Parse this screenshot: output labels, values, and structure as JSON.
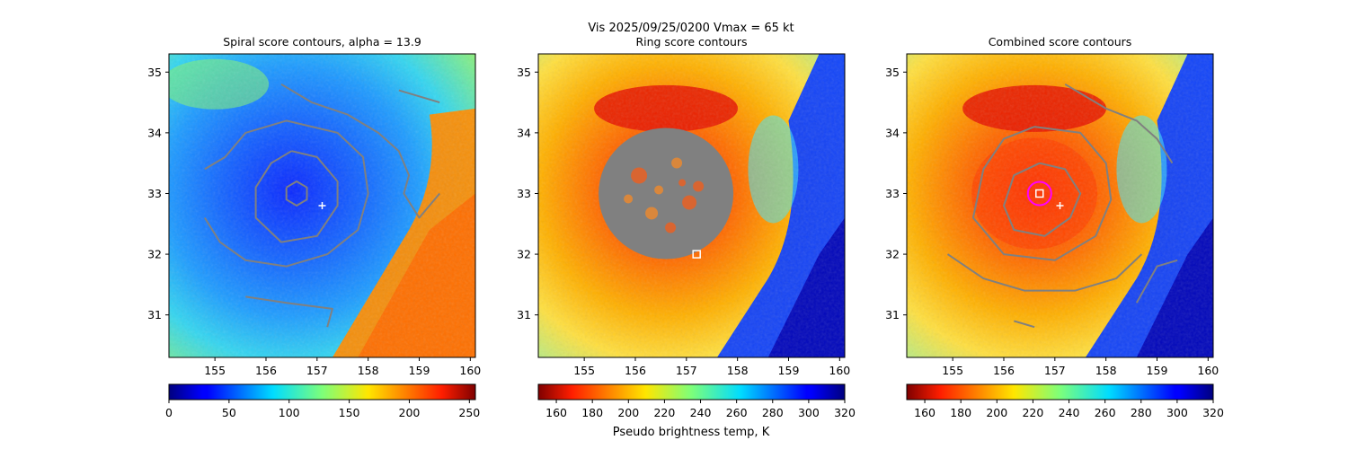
{
  "figure": {
    "suptitle": "Vis  2025/09/25/0200    Vmax = 65 kt",
    "shared_xlabel": "Pseudo brightness temp, K"
  },
  "colors": {
    "contour": "#808080",
    "marker": "#ffffff",
    "center_circle": "#ff00ff",
    "ring_mask": "#808080"
  },
  "chart_data": [
    {
      "type": "heatmap",
      "title": "Spiral score contours, alpha = 13.9",
      "xlim": [
        154.1,
        160.1
      ],
      "ylim": [
        30.3,
        35.3
      ],
      "xticks": [
        155,
        156,
        157,
        158,
        159,
        160
      ],
      "yticks": [
        31,
        32,
        33,
        34,
        35
      ],
      "colormap": "jet",
      "colormap_reversed": false,
      "colorbar_range": [
        0,
        255
      ],
      "colorbar_ticks": [
        0,
        50,
        100,
        150,
        200,
        250
      ],
      "cursor_cross": [
        157.1,
        32.8
      ],
      "contours_lon_lat": [
        [
          [
            156.4,
            33.1
          ],
          [
            156.6,
            33.2
          ],
          [
            156.8,
            33.1
          ],
          [
            156.8,
            32.9
          ],
          [
            156.6,
            32.8
          ],
          [
            156.4,
            32.9
          ],
          [
            156.4,
            33.1
          ]
        ],
        [
          [
            156.5,
            33.7
          ],
          [
            157.0,
            33.6
          ],
          [
            157.4,
            33.2
          ],
          [
            157.4,
            32.8
          ],
          [
            157.0,
            32.3
          ],
          [
            156.3,
            32.2
          ],
          [
            155.8,
            32.6
          ],
          [
            155.8,
            33.1
          ],
          [
            156.1,
            33.5
          ],
          [
            156.5,
            33.7
          ]
        ],
        [
          [
            154.8,
            33.4
          ],
          [
            155.2,
            33.6
          ],
          [
            155.6,
            34.0
          ],
          [
            156.4,
            34.2
          ],
          [
            157.4,
            34.0
          ],
          [
            157.9,
            33.6
          ],
          [
            158.0,
            33.0
          ],
          [
            157.8,
            32.4
          ],
          [
            157.2,
            32.0
          ],
          [
            156.4,
            31.8
          ],
          [
            155.6,
            31.9
          ],
          [
            155.1,
            32.2
          ],
          [
            154.8,
            32.6
          ]
        ],
        [
          [
            156.3,
            34.8
          ],
          [
            156.9,
            34.5
          ],
          [
            157.6,
            34.3
          ],
          [
            158.2,
            34.0
          ],
          [
            158.6,
            33.7
          ],
          [
            158.8,
            33.3
          ],
          [
            158.7,
            33.0
          ],
          [
            159.0,
            32.6
          ],
          [
            159.4,
            33.0
          ]
        ],
        [
          [
            158.6,
            34.7
          ],
          [
            159.4,
            34.5
          ]
        ],
        [
          [
            155.6,
            31.3
          ],
          [
            156.4,
            31.2
          ],
          [
            157.3,
            31.1
          ],
          [
            157.2,
            30.8
          ]
        ]
      ]
    },
    {
      "type": "heatmap",
      "title": "Ring score contours",
      "xlim": [
        154.1,
        160.1
      ],
      "ylim": [
        30.3,
        35.3
      ],
      "xticks": [
        155,
        156,
        157,
        158,
        159,
        160
      ],
      "yticks": [
        31,
        32,
        33,
        34,
        35
      ],
      "colormap": "jet",
      "colormap_reversed": true,
      "colorbar_range": [
        150,
        320
      ],
      "colorbar_ticks": [
        160,
        180,
        200,
        220,
        240,
        260,
        280,
        300,
        320
      ],
      "ring_mask_center": [
        156.6,
        33.0
      ],
      "square_marker": [
        157.2,
        32.0
      ]
    },
    {
      "type": "heatmap",
      "title": "Combined score contours",
      "xlim": [
        154.1,
        160.1
      ],
      "ylim": [
        30.3,
        35.3
      ],
      "xticks": [
        155,
        156,
        157,
        158,
        159,
        160
      ],
      "yticks": [
        31,
        32,
        33,
        34,
        35
      ],
      "colormap": "jet",
      "colormap_reversed": true,
      "colorbar_range": [
        150,
        320
      ],
      "colorbar_ticks": [
        160,
        180,
        200,
        220,
        240,
        260,
        280,
        300,
        320
      ],
      "center_square": [
        156.7,
        33.0
      ],
      "cursor_cross": [
        157.1,
        32.8
      ],
      "contours_lon_lat": [
        [
          [
            156.7,
            33.5
          ],
          [
            157.2,
            33.4
          ],
          [
            157.5,
            33.0
          ],
          [
            157.3,
            32.6
          ],
          [
            156.8,
            32.3
          ],
          [
            156.2,
            32.4
          ],
          [
            156.0,
            32.8
          ],
          [
            156.2,
            33.3
          ],
          [
            156.7,
            33.5
          ]
        ],
        [
          [
            156.6,
            34.1
          ],
          [
            157.5,
            34.0
          ],
          [
            158.0,
            33.5
          ],
          [
            158.1,
            32.9
          ],
          [
            157.8,
            32.3
          ],
          [
            157.0,
            31.9
          ],
          [
            156.0,
            32.0
          ],
          [
            155.4,
            32.6
          ],
          [
            155.6,
            33.4
          ],
          [
            156.0,
            33.9
          ],
          [
            156.6,
            34.1
          ]
        ],
        [
          [
            154.9,
            32.0
          ],
          [
            155.6,
            31.6
          ],
          [
            156.4,
            31.4
          ],
          [
            157.4,
            31.4
          ],
          [
            158.2,
            31.6
          ],
          [
            158.7,
            32.0
          ]
        ],
        [
          [
            157.2,
            34.8
          ],
          [
            158.0,
            34.4
          ],
          [
            158.6,
            34.2
          ],
          [
            159.0,
            33.9
          ],
          [
            159.3,
            33.5
          ]
        ],
        [
          [
            158.6,
            31.2
          ],
          [
            159.0,
            31.8
          ],
          [
            159.4,
            31.9
          ]
        ],
        [
          [
            156.2,
            30.9
          ],
          [
            156.6,
            30.8
          ]
        ]
      ]
    }
  ]
}
